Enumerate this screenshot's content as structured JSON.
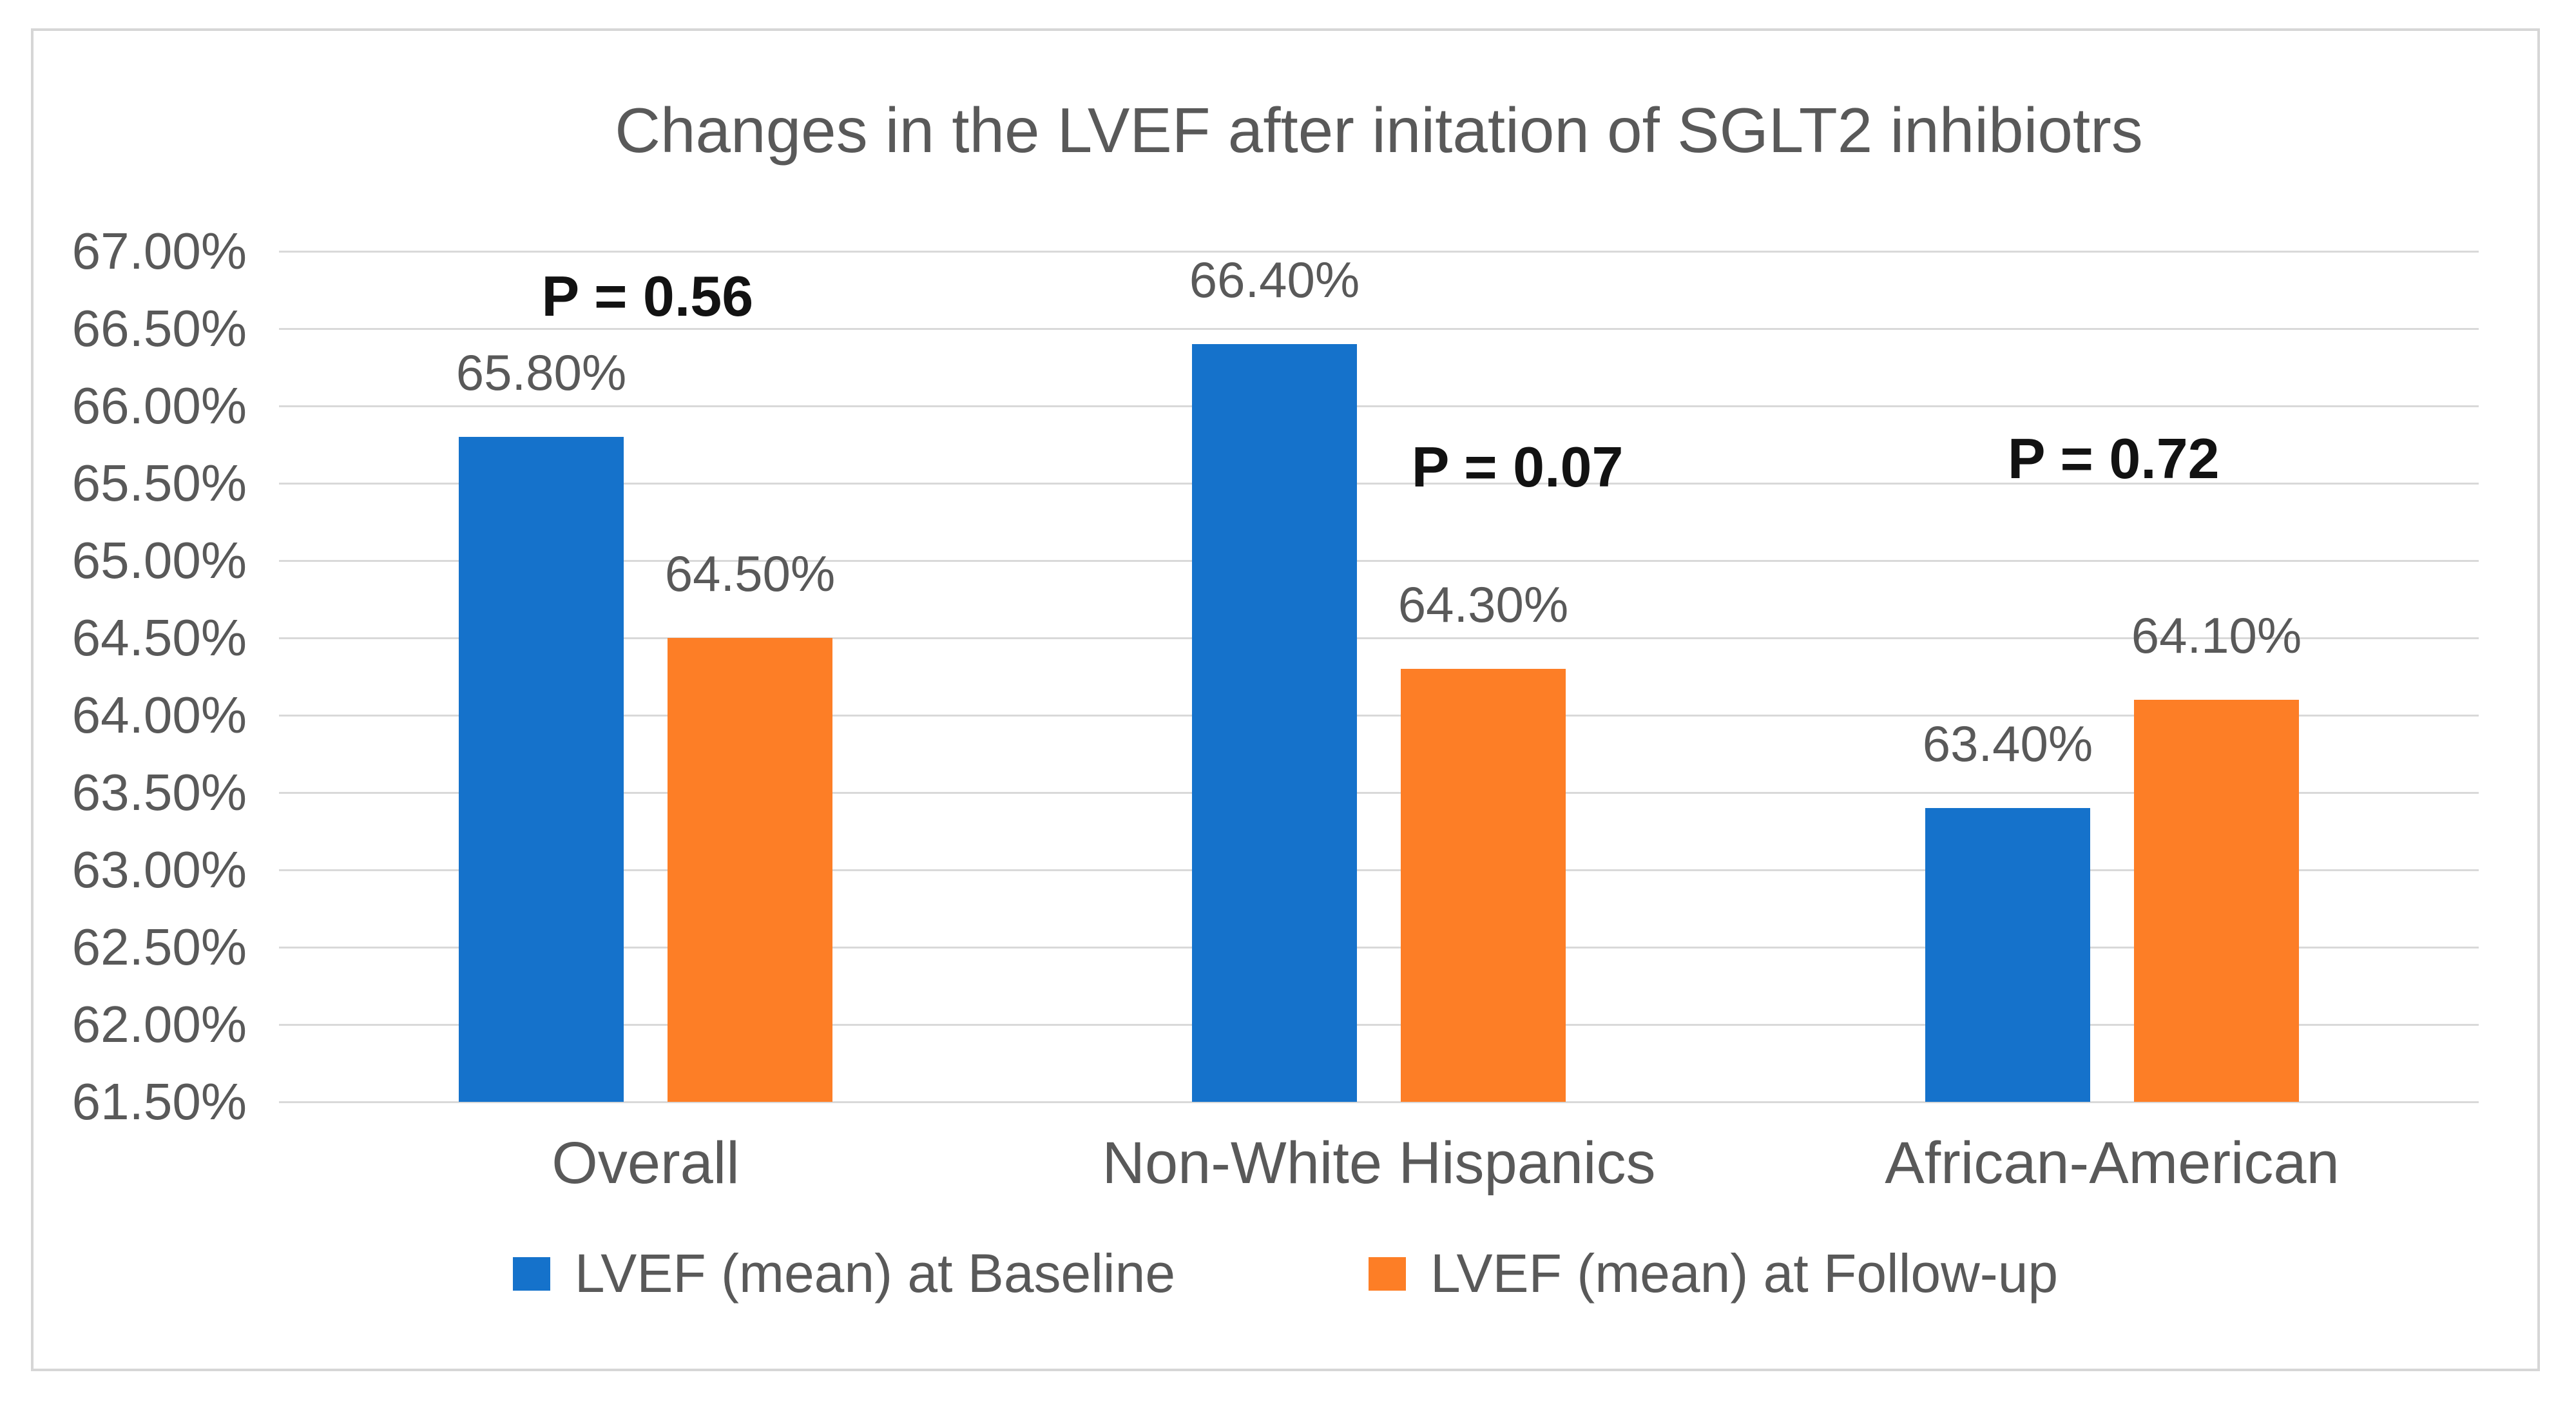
{
  "chart_data": {
    "type": "bar",
    "title": "Changes in the LVEF after initation of SGLT2 inhibiotrs",
    "categories": [
      "Overall",
      "Non-White Hispanics",
      "African-American"
    ],
    "series": [
      {
        "name": "LVEF (mean) at Baseline",
        "color": "#1572CB",
        "values": [
          65.8,
          66.4,
          63.4
        ],
        "data_labels": [
          "65.80%",
          "66.40%",
          "63.40%"
        ]
      },
      {
        "name": "LVEF (mean) at Follow-up",
        "color": "#FD7E26",
        "values": [
          64.5,
          64.3,
          64.1
        ],
        "data_labels": [
          "64.50%",
          "64.30%",
          "64.10%"
        ]
      }
    ],
    "y_axis": {
      "min": 61.5,
      "max": 67.0,
      "step": 0.5,
      "format": "percent",
      "tick_labels": [
        "67.00%",
        "66.50%",
        "66.00%",
        "65.50%",
        "65.00%",
        "64.50%",
        "64.00%",
        "63.50%",
        "63.00%",
        "62.50%",
        "62.00%",
        "61.50%"
      ]
    },
    "annotations": [
      {
        "label": "P = 0.56",
        "x": 0.1675,
        "y": 0.053
      },
      {
        "label": "P = 0.07",
        "x": 0.563,
        "y": 0.254
      },
      {
        "label": "P = 0.72",
        "x": 0.834,
        "y": 0.244
      }
    ],
    "legend": {
      "position": "bottom",
      "entries": [
        {
          "label": "LVEF (mean) at Baseline",
          "color": "#1572CB"
        },
        {
          "label": "LVEF (mean) at Follow-up",
          "color": "#FD7E26"
        }
      ]
    },
    "grid": true,
    "colors": {
      "text": "#595959",
      "annotation": "#121212",
      "gridline": "#D9D9D9",
      "frame": "#D6D6D6",
      "background": "#FFFFFF"
    }
  }
}
